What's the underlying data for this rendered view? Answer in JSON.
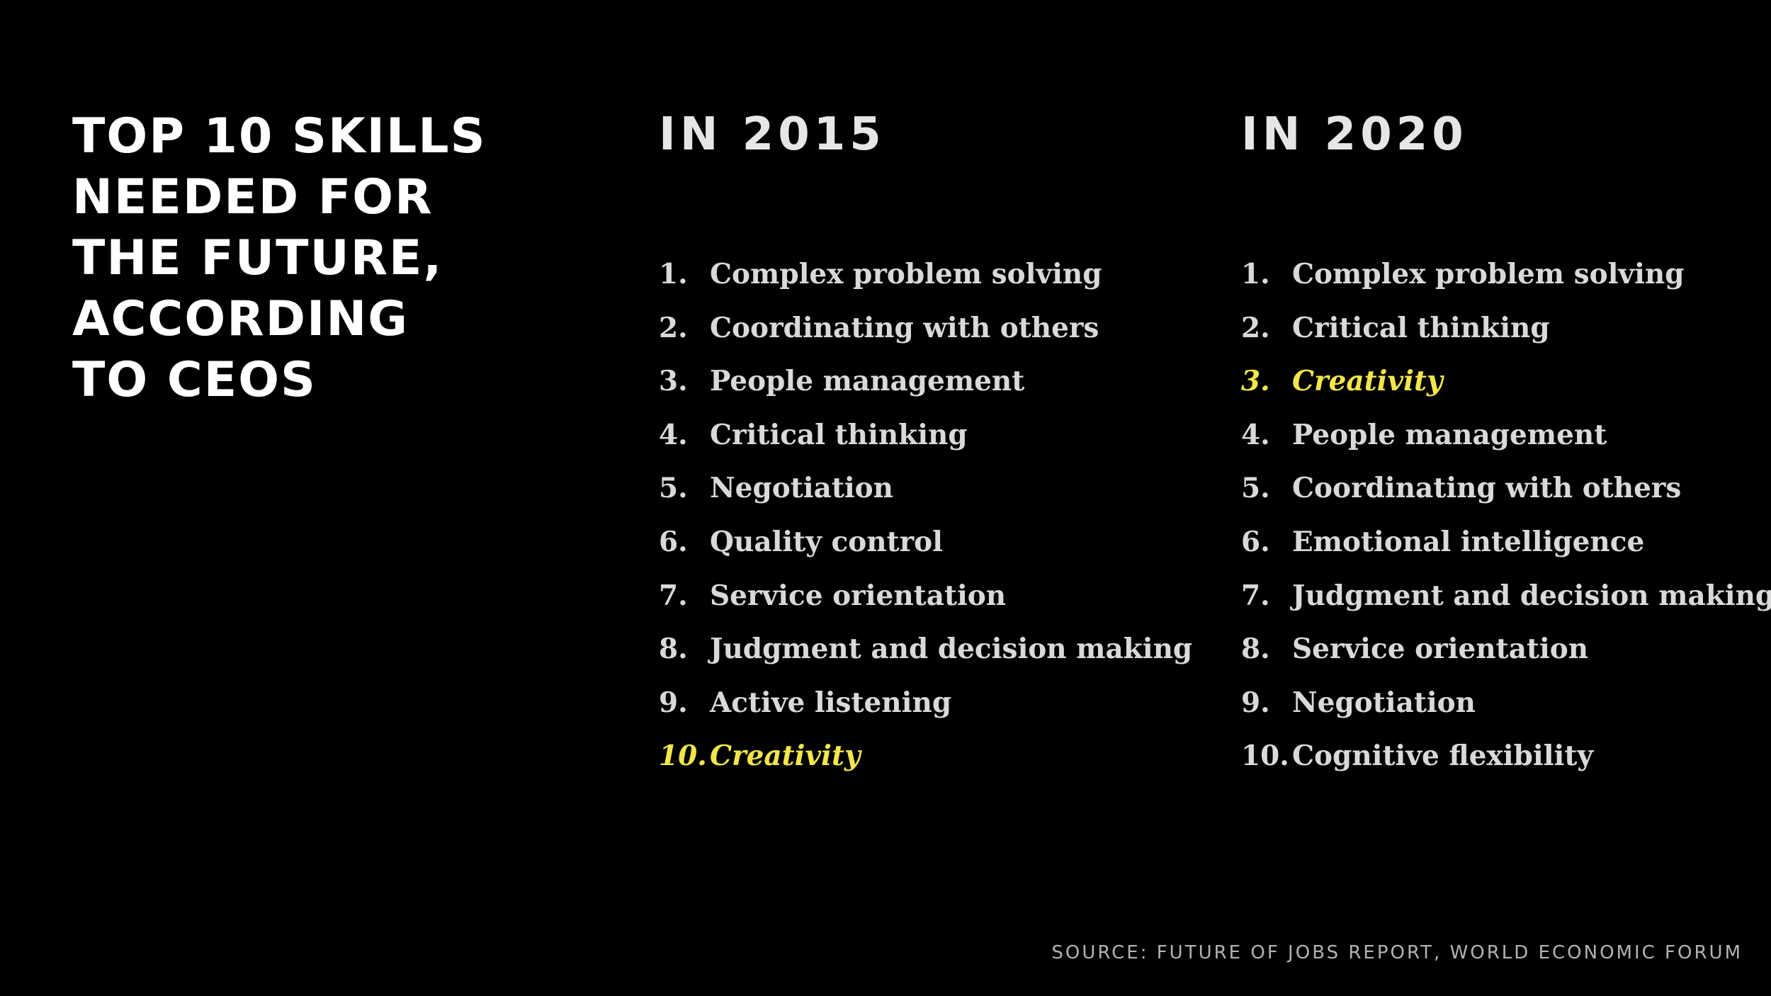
{
  "title_lines": [
    "TOP 10 SKILLS",
    "NEEDED FOR",
    "THE FUTURE,",
    "ACCORDING",
    "TO CEOS"
  ],
  "columns": [
    {
      "heading": "IN 2015",
      "items": [
        {
          "num": "1.",
          "label": "Complex problem solving",
          "highlight": false
        },
        {
          "num": "2.",
          "label": "Coordinating with others",
          "highlight": false
        },
        {
          "num": "3.",
          "label": "People management",
          "highlight": false
        },
        {
          "num": "4.",
          "label": "Critical thinking",
          "highlight": false
        },
        {
          "num": "5.",
          "label": "Negotiation",
          "highlight": false
        },
        {
          "num": "6.",
          "label": "Quality control",
          "highlight": false
        },
        {
          "num": "7.",
          "label": "Service orientation",
          "highlight": false
        },
        {
          "num": "8.",
          "label": "Judgment and decision making",
          "highlight": false
        },
        {
          "num": "9.",
          "label": "Active listening",
          "highlight": false
        },
        {
          "num": "10.",
          "label": "Creativity",
          "highlight": true
        }
      ]
    },
    {
      "heading": "IN 2020",
      "items": [
        {
          "num": "1.",
          "label": "Complex problem solving",
          "highlight": false
        },
        {
          "num": "2.",
          "label": "Critical thinking",
          "highlight": false
        },
        {
          "num": "3.",
          "label": "Creativity",
          "highlight": true
        },
        {
          "num": "4.",
          "label": "People management",
          "highlight": false
        },
        {
          "num": "5.",
          "label": "Coordinating with others",
          "highlight": false
        },
        {
          "num": "6.",
          "label": "Emotional intelligence",
          "highlight": false
        },
        {
          "num": "7.",
          "label": "Judgment and decision making",
          "highlight": false
        },
        {
          "num": "8.",
          "label": "Service orientation",
          "highlight": false
        },
        {
          "num": "9.",
          "label": "Negotiation",
          "highlight": false
        },
        {
          "num": "10.",
          "label": "Cognitive flexibility",
          "highlight": false
        }
      ]
    }
  ],
  "source": "SOURCE: FUTURE OF JOBS REPORT, WORLD ECONOMIC FORUM",
  "colors": {
    "background": "#000000",
    "text": "#ffffff",
    "list_text": "#d9d9d9",
    "highlight": "#f2e64a",
    "source": "#b3b3b3"
  }
}
